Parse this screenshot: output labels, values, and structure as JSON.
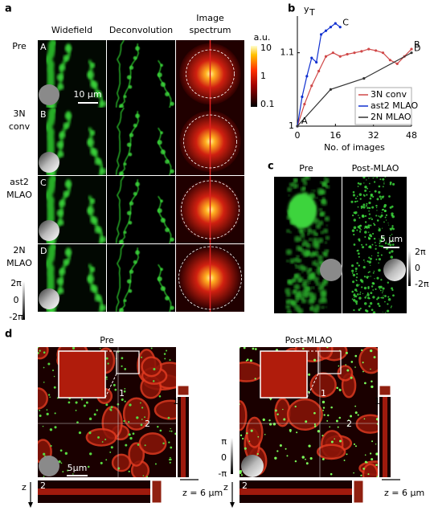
{
  "panel_a": {
    "label": "a",
    "columns": [
      "Widefield",
      "Deconvolution",
      [
        "Image",
        "spectrum"
      ]
    ],
    "rows": [
      {
        "name": [
          "Pre"
        ],
        "letter": "A"
      },
      {
        "name": [
          "3N",
          "conv"
        ],
        "letter": "B"
      },
      {
        "name": [
          "ast2",
          "MLAO"
        ],
        "letter": "C"
      },
      {
        "name": [
          "2N",
          "MLAO"
        ],
        "letter": "D"
      }
    ],
    "scale_bar": "10 μm",
    "colorbar": {
      "unit": "a.u.",
      "ticks": [
        "10",
        "1",
        "0.1"
      ]
    },
    "phase_bar": [
      "2π",
      "0",
      "-2π"
    ]
  },
  "chart_data": {
    "type": "line",
    "label": "b",
    "ylabel": {
      "main": "y",
      "sub": "T"
    },
    "xlabel": "No. of images",
    "xlim": [
      0,
      48
    ],
    "xticks": [
      0,
      16,
      32,
      48
    ],
    "ylim": [
      1,
      1.15
    ],
    "yticks": [
      1,
      1.1
    ],
    "start_label": "A",
    "legend": "lower right",
    "series": [
      {
        "name": "3N conv",
        "color": "#d04848",
        "end_label": "B",
        "x": [
          0,
          3,
          6,
          9,
          12,
          15,
          18,
          21,
          24,
          27,
          30,
          33,
          36,
          39,
          42,
          45,
          48
        ],
        "values": [
          1,
          1.03,
          1.055,
          1.075,
          1.095,
          1.1,
          1.095,
          1.098,
          1.1,
          1.102,
          1.105,
          1.103,
          1.1,
          1.09,
          1.085,
          1.095,
          1.105
        ]
      },
      {
        "name": "ast2 MLAO",
        "color": "#1030d0",
        "end_label": "C",
        "x": [
          0,
          2,
          4,
          6,
          8,
          10,
          12,
          14,
          16,
          18
        ],
        "values": [
          1,
          1.04,
          1.068,
          1.093,
          1.087,
          1.125,
          1.13,
          1.135,
          1.14,
          1.135
        ]
      },
      {
        "name": "2N MLAO",
        "color": "#333333",
        "end_label": "D",
        "x": [
          0,
          14,
          28,
          48
        ],
        "values": [
          1,
          1.05,
          1.065,
          1.1
        ]
      }
    ]
  },
  "panel_c": {
    "label": "c",
    "titles": [
      "Pre",
      "Post-MLAO"
    ],
    "scale_bar": "5 μm",
    "phase_bar": [
      "2π",
      "0",
      "-2π"
    ]
  },
  "panel_d": {
    "label": "d",
    "views": [
      {
        "title": "Pre",
        "lines": [
          "1",
          "2"
        ],
        "z_axis": "z",
        "z_depth": "z = 6 μm",
        "scale_bar": "5μm"
      },
      {
        "title": "Post-MLAO",
        "lines": [
          "1",
          "2"
        ],
        "z_axis": "z",
        "z_depth": "z = 6 μm"
      }
    ],
    "phase_bar": [
      "π",
      "0",
      "-π"
    ]
  }
}
